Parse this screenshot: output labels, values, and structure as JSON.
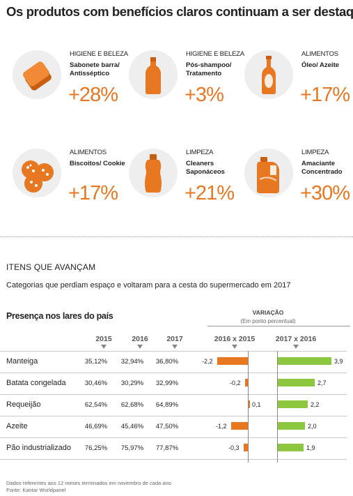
{
  "title": "Os produtos com benefícios claros continuam a ser destaque",
  "cards": [
    {
      "category": "HIGIENE E BELEZA",
      "product": "Sabonete barra/ Antisséptico",
      "change": "+28%",
      "icon": "soap-bar-icon"
    },
    {
      "category": "HIGIENE E BELEZA",
      "product": "Pós-shampoo/ Tratamento",
      "change": "+3%",
      "icon": "bottle-icon"
    },
    {
      "category": "ALIMENTOS",
      "product": "Óleo/ Azeite",
      "change": "+17%",
      "icon": "oil-bottle-icon"
    },
    {
      "category": "ALIMENTOS",
      "product": "Biscoitos/ Cookie",
      "change": "+17%",
      "icon": "cookies-icon"
    },
    {
      "category": "LIMPEZA",
      "product": "Cleaners Saponáceos",
      "change": "+21%",
      "icon": "cleaner-bottle-icon"
    },
    {
      "category": "LIMPEZA",
      "product": "Amaciante Concentrado",
      "change": "+30%",
      "icon": "softener-jug-icon"
    }
  ],
  "section_title": "ITENS QUE AVANÇAM",
  "section_subtitle": "Categorias que perdiam espaço e voltaram para a cesta do supermercado em 2017",
  "table_title": "Presença nos lares do país",
  "variation_title": "VARIAÇÃO",
  "variation_subtitle": "(Em ponto percentual)",
  "colors": {
    "accent": "#e87722",
    "positive": "#8dc63f",
    "text": "#222222"
  },
  "chart_data": {
    "type": "table",
    "columns": [
      "2015",
      "2016",
      "2017",
      "2016 x 2015",
      "2017 x 2016"
    ],
    "rows": [
      {
        "label": "Manteiga",
        "values": [
          "35,12%",
          "32,94%",
          "36,80%"
        ],
        "var_1615": -2.2,
        "var_1615_label": "-2,2",
        "var_1716": 3.9,
        "var_1716_label": "3,9"
      },
      {
        "label": "Batata congelada",
        "values": [
          "30,46%",
          "30,29%",
          "32,99%"
        ],
        "var_1615": -0.2,
        "var_1615_label": "-0,2",
        "var_1716": 2.7,
        "var_1716_label": "2,7"
      },
      {
        "label": "Requeijão",
        "values": [
          "62,54%",
          "62,68%",
          "64,89%"
        ],
        "var_1615": 0.1,
        "var_1615_label": "0,1",
        "var_1716": 2.2,
        "var_1716_label": "2,2"
      },
      {
        "label": "Azeite",
        "values": [
          "46,69%",
          "45,46%",
          "47,50%"
        ],
        "var_1615": -1.2,
        "var_1615_label": "-1,2",
        "var_1716": 2.0,
        "var_1716_label": "2,0"
      },
      {
        "label": "Pão industrializado",
        "values": [
          "76,25%",
          "75,97%",
          "77,87%"
        ],
        "var_1615": -0.3,
        "var_1615_label": "-0,3",
        "var_1716": 1.9,
        "var_1716_label": "1,9"
      }
    ]
  },
  "footnote": "Dados referentes aos 12 meses terminados em novembro de cada ano",
  "source": "Fonte: Kantar Worldpanel"
}
